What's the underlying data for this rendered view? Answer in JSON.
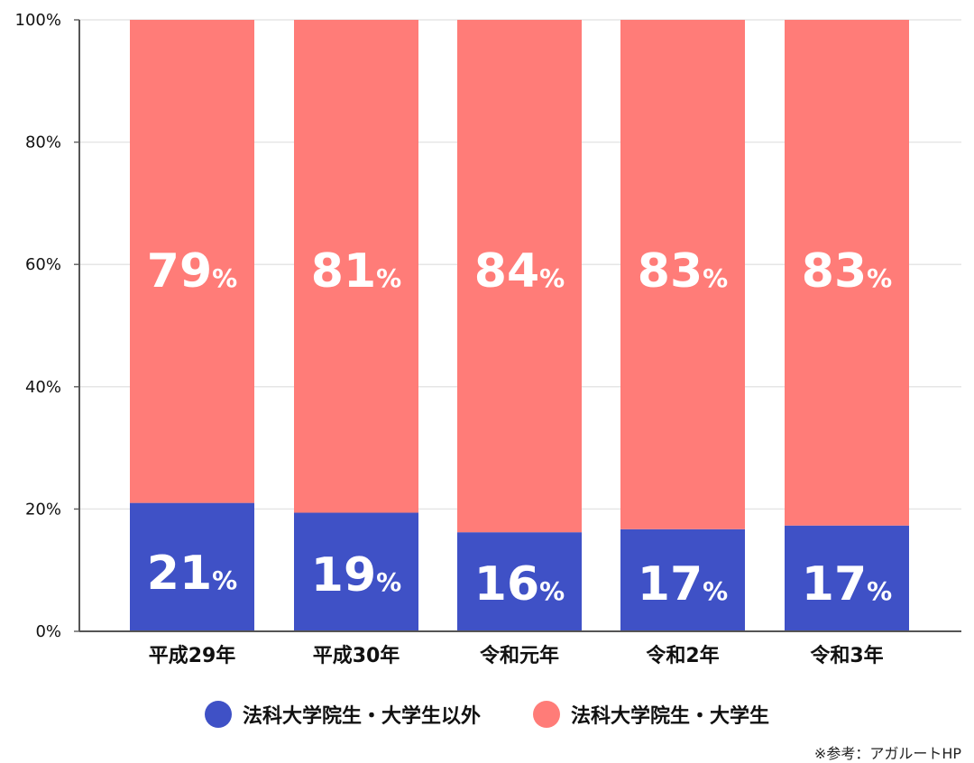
{
  "chart_data": {
    "type": "bar",
    "stacked": true,
    "categories": [
      "平成29年",
      "平成30年",
      "令和元年",
      "令和2年",
      "令和3年"
    ],
    "series": [
      {
        "name": "法科大学院生・大学生以外",
        "values": [
          21,
          19,
          16,
          17,
          17
        ],
        "labels": [
          "21",
          "19",
          "16",
          "17",
          "17"
        ],
        "color": "#3f51c6"
      },
      {
        "name": "法科大学院生・大学生",
        "values": [
          79,
          81,
          84,
          83,
          83
        ],
        "labels": [
          "79",
          "81",
          "84",
          "83",
          "83"
        ],
        "color": "#ff7c78"
      }
    ],
    "exact_lower_values": [
      21,
      19.4,
      16.2,
      16.7,
      17.3
    ],
    "value_suffix": "%",
    "yticks": [
      "0%",
      "20%",
      "40%",
      "60%",
      "80%",
      "100%"
    ],
    "ylim": [
      0,
      100
    ],
    "grid": true,
    "legend_position": "bottom"
  },
  "source_note": "※参考：アガルートHP"
}
